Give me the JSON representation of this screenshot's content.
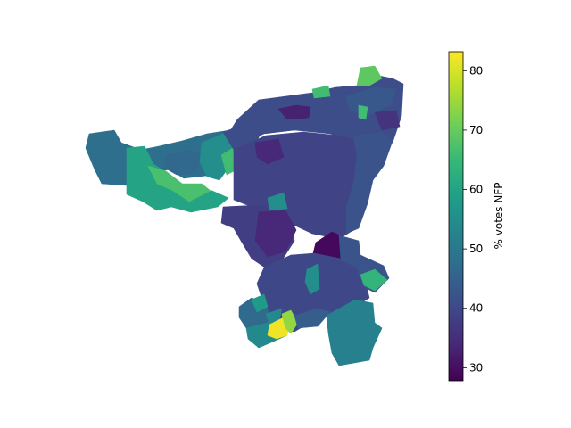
{
  "colorbar": {
    "label": "% votes NFP",
    "min": 27.8,
    "max": 83.2,
    "ticks": [
      "30",
      "40",
      "50",
      "60",
      "70",
      "80"
    ],
    "tick_values": [
      30,
      40,
      50,
      60,
      70,
      80
    ],
    "colormap": "viridis",
    "stops": [
      "#440154",
      "#482878",
      "#3e4989",
      "#31688e",
      "#26828e",
      "#1f9e89",
      "#35b779",
      "#6ece58",
      "#b5de2b",
      "#fde725"
    ]
  },
  "map": {
    "region_values": {
      "west_arm": 48,
      "west_arm_south": 60,
      "west_stripe": 67,
      "west_mid": 46,
      "west_upper": 55,
      "west_green": 66,
      "north_core": 41,
      "north_dark": 33,
      "north_east": 43,
      "north_east_dark": 36,
      "northeast_tip": 69,
      "north_green": 66,
      "center": 39,
      "center_west": 38,
      "center_dark": 34,
      "center_deep": 29,
      "east": 42,
      "east_green": 64,
      "south_core": 40,
      "south_west": 47,
      "south_green_w": 58,
      "south_teal": 54,
      "south_yellow": 82,
      "south_lime": 74,
      "south_east": 52,
      "center_teal": 55,
      "south_mid": 44
    }
  }
}
